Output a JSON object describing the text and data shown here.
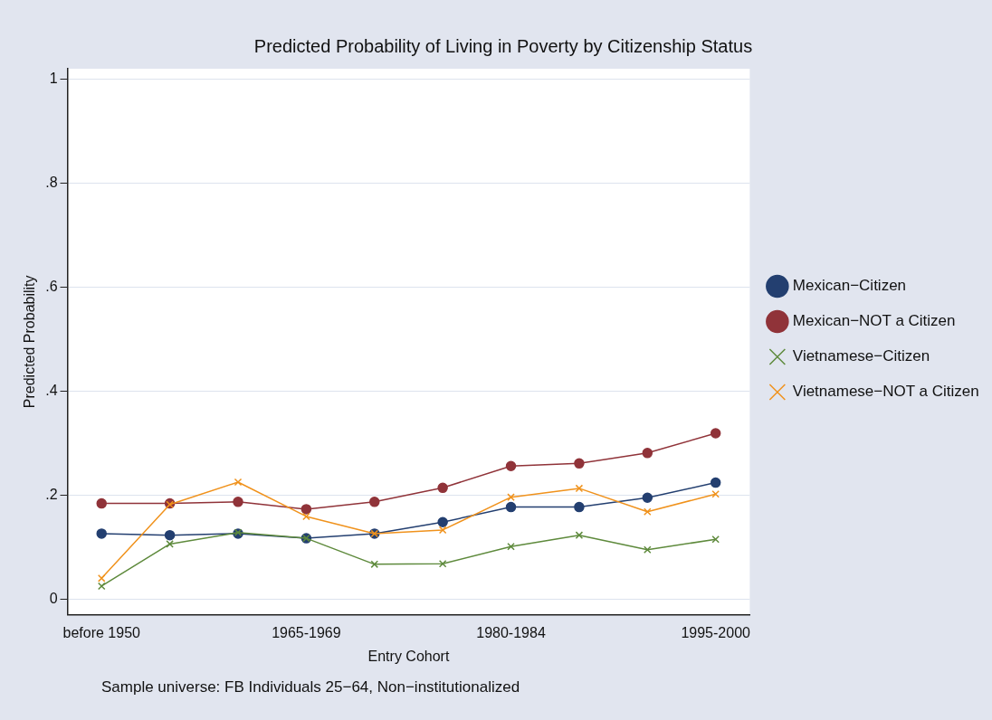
{
  "chart_data": {
    "type": "line",
    "title": "Predicted Probability of Living in Poverty by Citizenship Status",
    "xlabel": "Entry Cohort",
    "ylabel": "Predicted Probability",
    "categories": [
      "before 1950",
      null,
      null,
      "1965-1969",
      null,
      null,
      "1980-1984",
      null,
      null,
      "1995-2000"
    ],
    "series": [
      {
        "name": "Mexican−Citizen",
        "color": "#233f70",
        "marker": "circle",
        "values": [
          0.126,
          0.123,
          0.126,
          0.117,
          0.126,
          0.148,
          0.177,
          0.177,
          0.195,
          0.224
        ]
      },
      {
        "name": "Mexican−NOT a Citizen",
        "color": "#903339",
        "marker": "circle",
        "values": [
          0.184,
          0.184,
          0.187,
          0.173,
          0.187,
          0.214,
          0.256,
          0.261,
          0.281,
          0.319
        ]
      },
      {
        "name": "Vietnamese−Citizen",
        "color": "#5e8a3c",
        "marker": "cross",
        "values": [
          0.025,
          0.106,
          0.128,
          0.117,
          0.067,
          0.068,
          0.101,
          0.123,
          0.095,
          0.115
        ]
      },
      {
        "name": "Vietnamese−NOT a Citizen",
        "color": "#f0921c",
        "marker": "cross",
        "values": [
          0.04,
          0.182,
          0.225,
          0.159,
          0.126,
          0.133,
          0.196,
          0.213,
          0.168,
          0.202
        ]
      }
    ],
    "ylim": [
      -0.03,
      1.02
    ],
    "yticks": [
      0,
      {
        "value": 0.2,
        "label": ".2"
      },
      {
        "value": 0.4,
        "label": ".4"
      },
      {
        "value": 0.6,
        "label": ".6"
      },
      {
        "value": 0.8,
        "label": ".8"
      },
      1
    ],
    "grid": "y",
    "legend": "right",
    "annotations": [
      "Sample universe: FB Individuals 25−64, Non−institutionalized"
    ]
  }
}
